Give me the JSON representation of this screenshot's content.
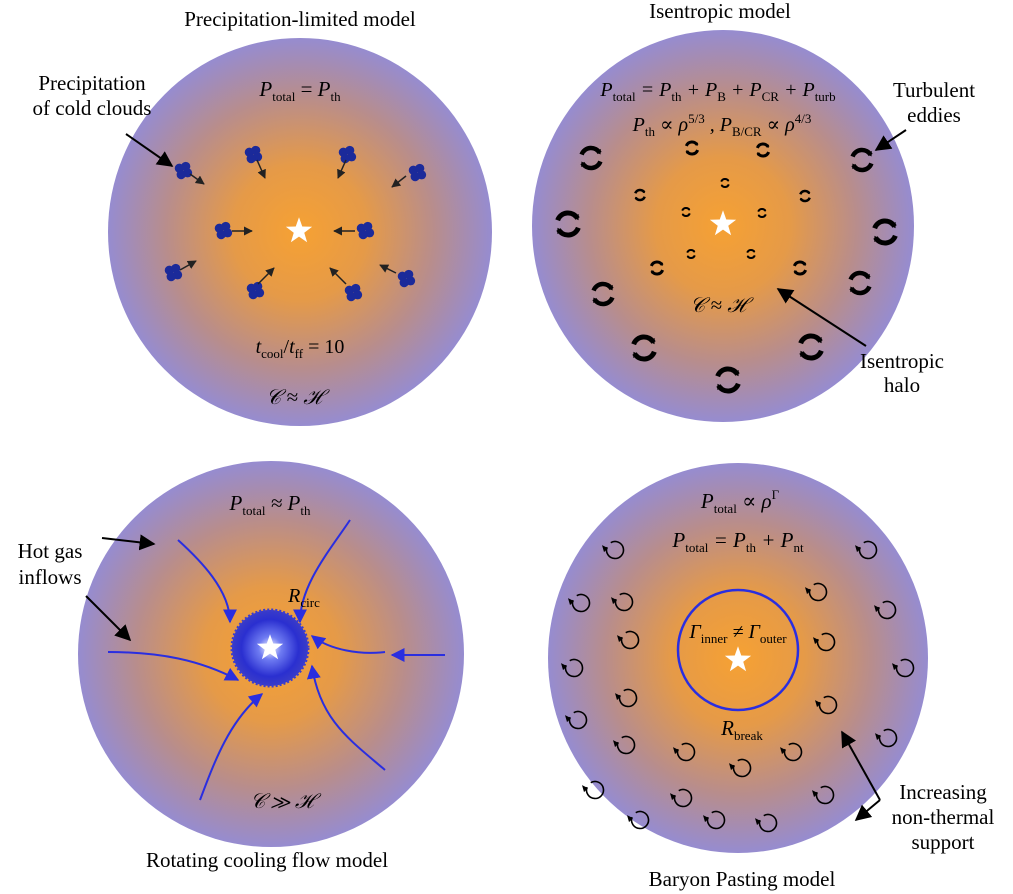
{
  "titles": {
    "precipitation": "Precipitation-limited model",
    "isentropic": "Isentropic model",
    "cooling_flow": "Rotating cooling flow model",
    "baryon_pasting": "Baryon Pasting model"
  },
  "precipitation": {
    "eq_P": "P",
    "eq_sub_total": "total",
    "eq_equals": " = ",
    "eq_P2": "P",
    "eq_sub_th": "th",
    "cool_t1": "t",
    "cool_sub1": "cool",
    "cool_slash": "/",
    "cool_t2": "t",
    "cool_sub2": "ff",
    "cool_rhs": " = 10",
    "balance": "𝒞 ≈ ℋ",
    "callout_line1": "Precipitation",
    "callout_line2": "of cold clouds"
  },
  "isentropic": {
    "eq1": "P",
    "eq1_s1": "total",
    "eq1_mid": " = P",
    "eq1_s2": "th",
    "eq1_p3": " + P",
    "eq1_s3": "B",
    "eq1_p4": " + P",
    "eq1_s4": "CR",
    "eq1_p5": " + P",
    "eq1_s5": "turb",
    "eq2_a": "P",
    "eq2_s1": "th",
    "eq2_b": " ∝ ρ",
    "eq2_sup1": "5/3",
    "eq2_c": " , P",
    "eq2_s2": "B/CR",
    "eq2_d": " ∝ ρ",
    "eq2_sup2": "4/3",
    "balance": "𝒞 ≈ ℋ",
    "callout_eddies_line1": "Turbulent",
    "callout_eddies_line2": "eddies",
    "callout_halo_line1": "Isentropic",
    "callout_halo_line2": "halo"
  },
  "cooling_flow": {
    "eq_P": "P",
    "eq_sub_total": "total",
    "eq_rel": " ≈ P",
    "eq_sub_th": "th",
    "rcirc_R": "R",
    "rcirc_sub": "circ",
    "balance": "𝒞 ≫ ℋ",
    "callout_line1": "Hot gas",
    "callout_line2": "inflows"
  },
  "baryon_pasting": {
    "eq1_P": "P",
    "eq1_sub": "total",
    "eq1_rel": " ∝ ρ",
    "eq1_sup": "Γ",
    "eq2_P": "P",
    "eq2_sub1": "total",
    "eq2_mid": " = P",
    "eq2_sub2": "th",
    "eq2_plus": " + P",
    "eq2_sub3": "nt",
    "inner_G": "Γ",
    "inner_sub1": "inner",
    "inner_neq": " ≠ Γ",
    "inner_sub2": "outer",
    "rbreak_R": "R",
    "rbreak_sub": "break",
    "callout_line1": "Increasing",
    "callout_line2": "non-thermal",
    "callout_line3": "support"
  },
  "colors": {
    "halo_center": "#f5a23a",
    "halo_edge": "#9b8fcf",
    "cloud": "#1b2a9a",
    "stream": "#2a2ee0",
    "eddy": "#000000"
  }
}
